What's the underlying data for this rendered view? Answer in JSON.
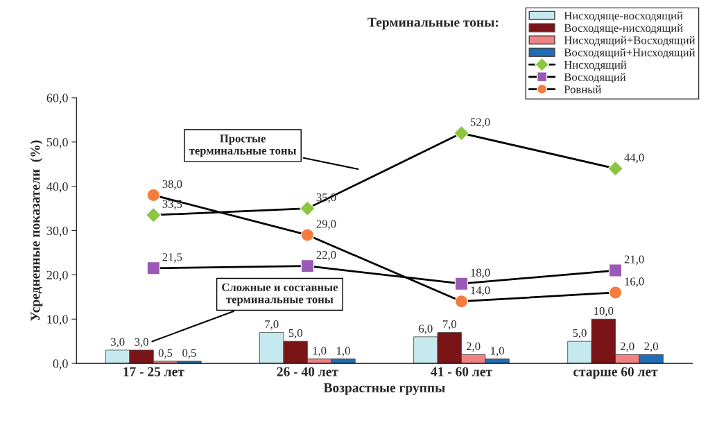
{
  "chart_data": {
    "type": "bar",
    "xlabel": "Возрастные группы",
    "ylabel": "Усредненные показатели  (%)",
    "legend_title": "Терминальные тоны:",
    "categories": [
      "17 - 25 лет",
      "26 - 40 лет",
      "41 - 60 лет",
      "старше 60 лет"
    ],
    "ylim": [
      0,
      60
    ],
    "yticks": [
      {
        "value": 0,
        "label": "0,0"
      },
      {
        "value": 10,
        "label": "10,0"
      },
      {
        "value": 20,
        "label": "20,0"
      },
      {
        "value": 30,
        "label": "30,0"
      },
      {
        "value": 40,
        "label": "40,0"
      },
      {
        "value": 50,
        "label": "50,0"
      },
      {
        "value": 60,
        "label": "60,0"
      }
    ],
    "grid": false,
    "legend": "top right",
    "series": [
      {
        "name": "Нисходяще-восходящий",
        "color": "#c5e9ef",
        "values": [
          3,
          7,
          6,
          5
        ],
        "value_labels": [
          "3,0",
          "7,0",
          "6,0",
          "5,0"
        ]
      },
      {
        "name": "Восходяще-нисходящий",
        "color": "#7b1416",
        "values": [
          3,
          5,
          7,
          10
        ],
        "value_labels": [
          "3,0",
          "5,0",
          "7,0",
          "10,0"
        ]
      },
      {
        "name": "Нисходящий+Восходящий",
        "color": "#f08282",
        "values": [
          0.5,
          1,
          2,
          2
        ],
        "value_labels": [
          "0,5",
          "1,0",
          "2,0",
          "2,0"
        ]
      },
      {
        "name": "Восходящий+Нисходящий",
        "color": "#1f6db5",
        "values": [
          0.5,
          1,
          1,
          2
        ],
        "value_labels": [
          "0,5",
          "1,0",
          "1,0",
          "2,0"
        ]
      },
      {
        "name": "Нисходящий",
        "type": "line",
        "marker": "diamond",
        "color": "#8cc63f",
        "values": [
          33.5,
          35,
          52,
          44
        ],
        "value_labels": [
          "33,5",
          "35,0",
          "52,0",
          "44,0"
        ]
      },
      {
        "name": "Восходящий",
        "type": "line",
        "marker": "square",
        "color": "#9b59b6",
        "values": [
          21.5,
          22,
          18,
          21
        ],
        "value_labels": [
          "21,5",
          "22,0",
          "18,0",
          "21,0"
        ]
      },
      {
        "name": "Ровный",
        "type": "line",
        "marker": "circle",
        "color": "#f47c3c",
        "values": [
          38,
          29,
          14,
          16
        ],
        "value_labels": [
          "38,0",
          "29,0",
          "14,0",
          "16,0"
        ]
      }
    ],
    "annotations": [
      "Простые\nтерминальные тоны",
      "Сложные и составные\nтерминальные тоны"
    ]
  }
}
